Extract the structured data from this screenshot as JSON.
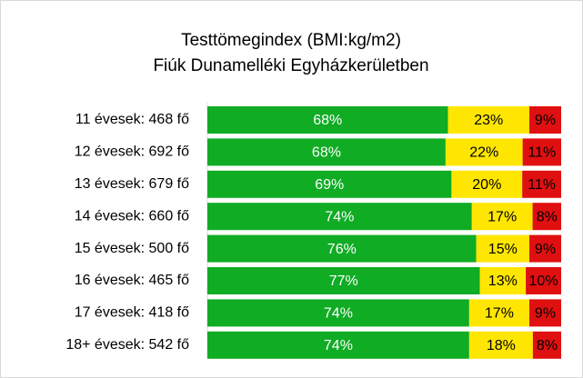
{
  "chart_data": {
    "type": "stacked-bar-horizontal",
    "title": "Testtömegindex (BMI:kg/m2)",
    "subtitle": "Fiúk Dunamelléki Egyházkerületben",
    "categories": [
      "11 évesek: 468 fő",
      "12 évesek: 692 fő",
      "13 évesek: 679 fő",
      "14 évesek: 660 fő",
      "15 évesek: 500 fő",
      "16 évesek: 465 fő",
      "17 évesek: 418 fő",
      "18+ évesek: 542 fő"
    ],
    "series": [
      {
        "color": "#0fac24",
        "label_color": "#ffffff",
        "values": [
          68,
          68,
          69,
          74,
          76,
          77,
          74,
          74
        ],
        "value_labels": [
          "68%",
          "68%",
          "69%",
          "74%",
          "76%",
          "77%",
          "74%",
          "74%"
        ]
      },
      {
        "color": "#ffe600",
        "label_color": "#000000",
        "values": [
          23,
          22,
          20,
          17,
          15,
          13,
          17,
          18
        ],
        "value_labels": [
          "23%",
          "22%",
          "20%",
          "17%",
          "15%",
          "13%",
          "17%",
          "18%"
        ]
      },
      {
        "color": "#e01010",
        "label_color": "#000000",
        "values": [
          9,
          11,
          11,
          8,
          9,
          10,
          9,
          8
        ],
        "value_labels": [
          "9%",
          "11%",
          "11%",
          "8%",
          "9%",
          "10%",
          "9%",
          "8%"
        ]
      }
    ]
  }
}
